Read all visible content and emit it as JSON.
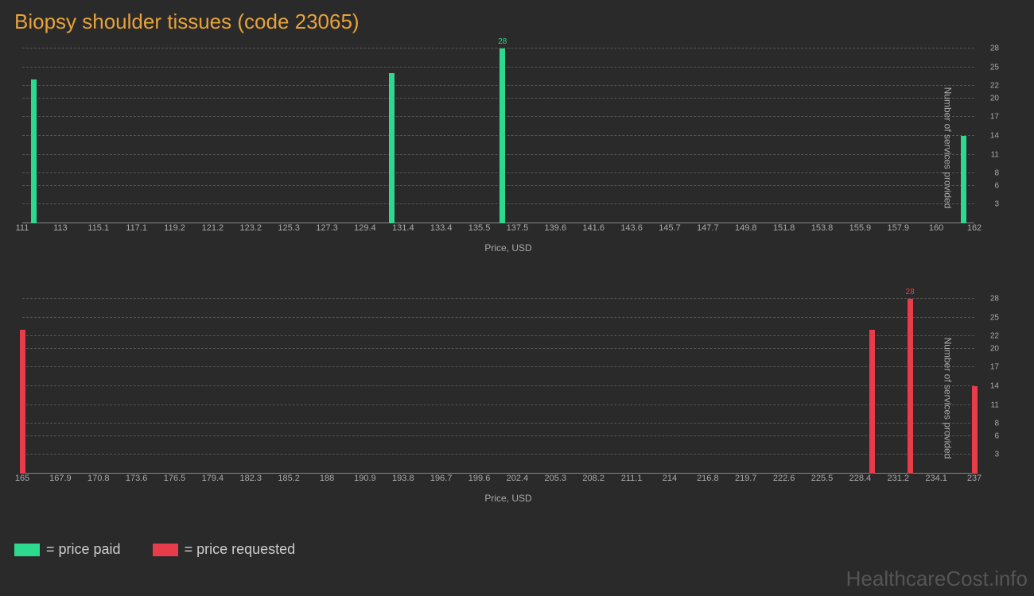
{
  "title": "Biopsy shoulder tissues (code 23065)",
  "watermark": "HealthcareCost.info",
  "colors": {
    "background": "#2a2a2a",
    "title": "#e8a23a",
    "green": "#2dd88f",
    "red": "#e83c4a",
    "grid": "#555555",
    "axis_text": "#aaaaaa",
    "legend_text": "#cccccc",
    "watermark": "#555555"
  },
  "chart_top": {
    "type": "histogram",
    "x_label": "Price, USD",
    "y_label": "Number of services provided",
    "x_ticks": [
      "111",
      "113",
      "115.1",
      "117.1",
      "119.2",
      "121.2",
      "123.2",
      "125.3",
      "127.3",
      "129.4",
      "131.4",
      "133.4",
      "135.5",
      "137.5",
      "139.6",
      "141.6",
      "143.6",
      "145.7",
      "147.7",
      "149.8",
      "151.8",
      "153.8",
      "155.9",
      "157.9",
      "160",
      "162"
    ],
    "y_ticks": [
      3,
      6,
      8,
      11,
      14,
      17,
      20,
      22,
      25,
      28
    ],
    "y_max": 28,
    "bars": [
      {
        "x_index": 0.3,
        "value": 23,
        "label": ""
      },
      {
        "x_index": 9.7,
        "value": 24,
        "label": ""
      },
      {
        "x_index": 12.6,
        "value": 28,
        "label": "28"
      },
      {
        "x_index": 24.7,
        "value": 14,
        "label": ""
      }
    ],
    "bar_color": "#2dd88f"
  },
  "chart_bottom": {
    "type": "histogram",
    "x_label": "Price, USD",
    "y_label": "Number of services provided",
    "x_ticks": [
      "165",
      "167.9",
      "170.8",
      "173.6",
      "176.5",
      "179.4",
      "182.3",
      "185.2",
      "188",
      "190.9",
      "193.8",
      "196.7",
      "199.6",
      "202.4",
      "205.3",
      "208.2",
      "211.1",
      "214",
      "216.8",
      "219.7",
      "222.6",
      "225.5",
      "228.4",
      "231.2",
      "234.1",
      "237"
    ],
    "y_ticks": [
      3,
      6,
      8,
      11,
      14,
      17,
      20,
      22,
      25,
      28
    ],
    "y_max": 28,
    "bars": [
      {
        "x_index": 0.0,
        "value": 23,
        "label": ""
      },
      {
        "x_index": 22.3,
        "value": 23,
        "label": ""
      },
      {
        "x_index": 23.3,
        "value": 28,
        "label": "28"
      },
      {
        "x_index": 25.0,
        "value": 14,
        "label": ""
      }
    ],
    "bar_color": "#e83c4a"
  },
  "legend": [
    {
      "color": "#2dd88f",
      "label": "= price paid"
    },
    {
      "color": "#e83c4a",
      "label": "= price requested"
    }
  ]
}
